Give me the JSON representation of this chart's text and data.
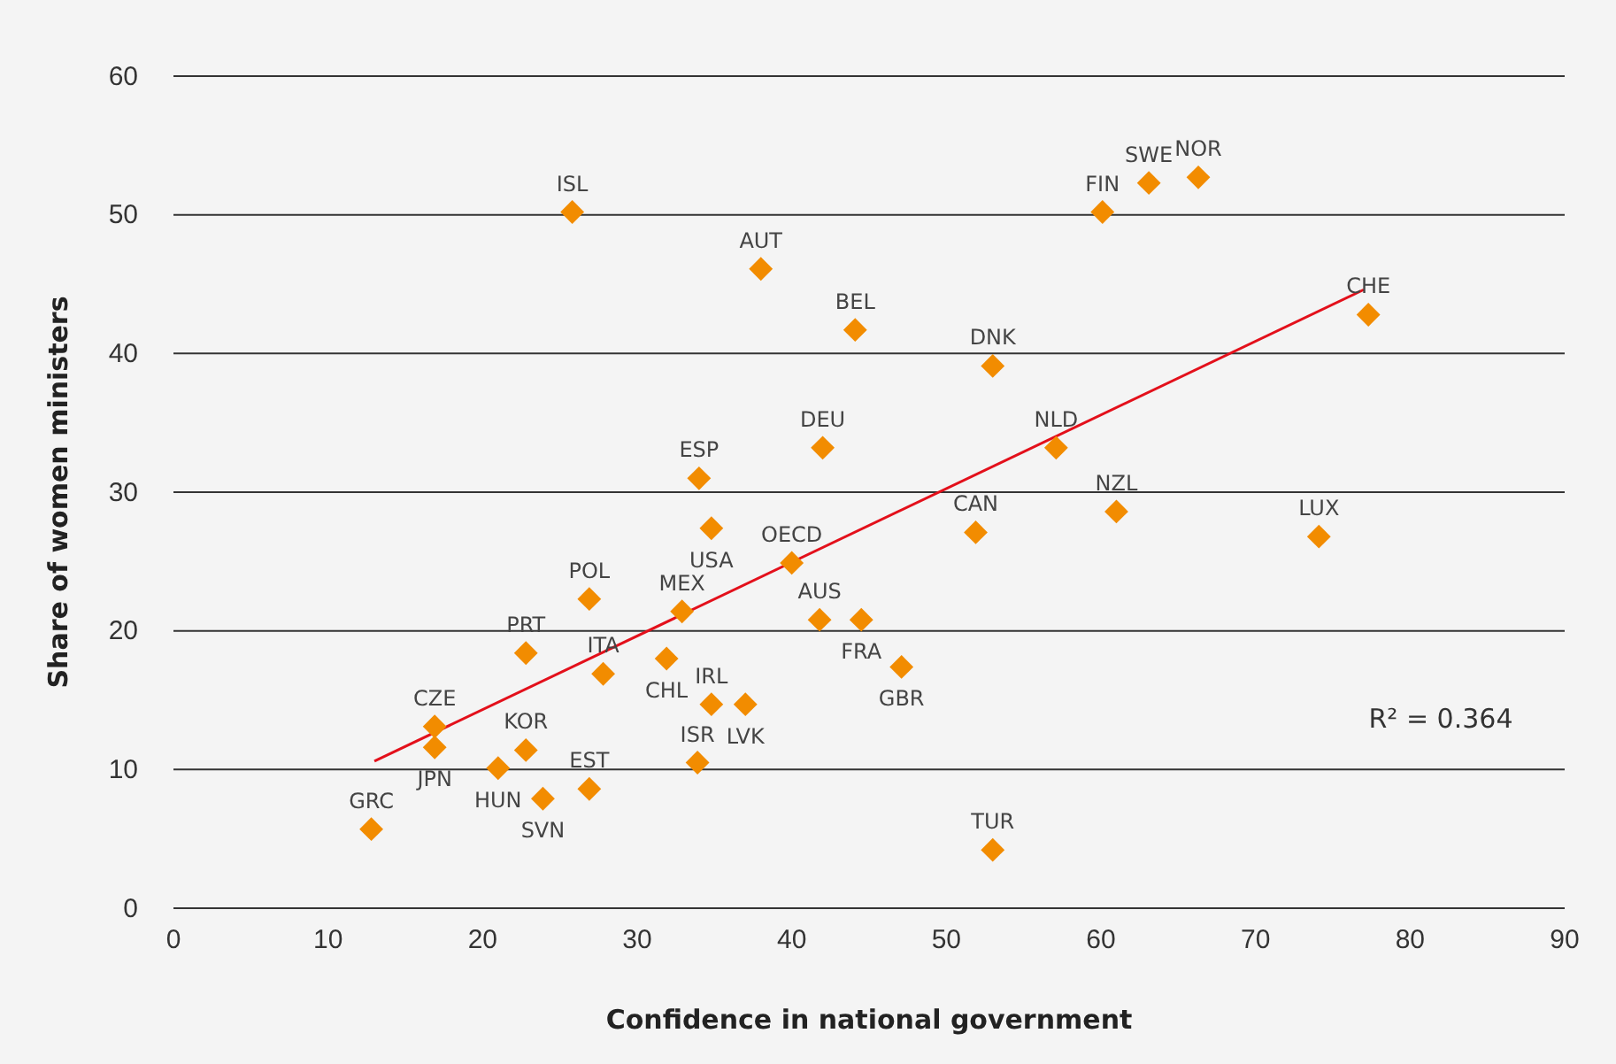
{
  "chart_data": {
    "type": "scatter",
    "xlabel": "Confidence in national government",
    "ylabel": "Share of women ministers",
    "xlim": [
      0,
      90
    ],
    "xticks": [
      0,
      10,
      20,
      30,
      40,
      50,
      60,
      70,
      80,
      90
    ],
    "ylim": [
      0,
      60
    ],
    "yticks": [
      0,
      10,
      20,
      30,
      40,
      50,
      60
    ],
    "grid": "y",
    "marker": "diamond",
    "series": [
      {
        "color": "#f28c00",
        "x": [
          12.8,
          16.9,
          16.9,
          21.0,
          22.8,
          23.9,
          26.9,
          22.8,
          27.8,
          26.9,
          31.9,
          32.9,
          25.8,
          34.0,
          34.8,
          34.8,
          37.0,
          33.9,
          38.0,
          40.0,
          42.0,
          41.8,
          44.5,
          44.1,
          47.1,
          51.9,
          53.0,
          53.0,
          57.1,
          61.0,
          60.1,
          63.1,
          66.3,
          77.3,
          74.1
        ],
        "values": [
          5.7,
          13.1,
          11.6,
          10.1,
          11.4,
          7.9,
          8.6,
          18.4,
          16.9,
          22.3,
          18.0,
          21.4,
          50.2,
          31.0,
          27.4,
          14.7,
          14.7,
          10.5,
          46.1,
          24.9,
          33.2,
          20.8,
          20.8,
          41.7,
          17.4,
          27.1,
          39.1,
          4.2,
          33.2,
          28.6,
          50.2,
          52.3,
          52.7,
          42.8,
          26.8
        ]
      },
      {
        "type": "line",
        "color": "#e3101b",
        "marker": "none",
        "line_style": "solid",
        "x": [
          13,
          77
        ],
        "values": [
          10.6,
          44.6
        ]
      }
    ],
    "annotations": [
      {
        "text": "GRC",
        "x": 12.8,
        "y": 5.7
      },
      {
        "text": "CZE",
        "x": 16.9,
        "y": 13.1
      },
      {
        "text": "JPN",
        "x": 16.9,
        "y": 11.6
      },
      {
        "text": "HUN",
        "x": 21.0,
        "y": 10.1
      },
      {
        "text": "KOR",
        "x": 22.8,
        "y": 11.4
      },
      {
        "text": "SVN",
        "x": 23.9,
        "y": 7.9
      },
      {
        "text": "EST",
        "x": 26.9,
        "y": 8.6
      },
      {
        "text": "PRT",
        "x": 22.8,
        "y": 18.4
      },
      {
        "text": "ITA",
        "x": 27.8,
        "y": 16.9
      },
      {
        "text": "POL",
        "x": 26.9,
        "y": 22.3
      },
      {
        "text": "CHL",
        "x": 31.9,
        "y": 18.0
      },
      {
        "text": "MEX",
        "x": 32.9,
        "y": 21.4
      },
      {
        "text": "ISL",
        "x": 25.8,
        "y": 50.2
      },
      {
        "text": "ESP",
        "x": 34.0,
        "y": 31.0
      },
      {
        "text": "USA",
        "x": 34.8,
        "y": 27.4
      },
      {
        "text": "IRL",
        "x": 34.8,
        "y": 14.7
      },
      {
        "text": "LVK",
        "x": 37.0,
        "y": 14.7
      },
      {
        "text": "ISR",
        "x": 33.9,
        "y": 10.5
      },
      {
        "text": "AUT",
        "x": 38.0,
        "y": 46.1
      },
      {
        "text": "OECD",
        "x": 40.0,
        "y": 24.9
      },
      {
        "text": "DEU",
        "x": 42.0,
        "y": 33.2
      },
      {
        "text": "AUS",
        "x": 41.8,
        "y": 20.8
      },
      {
        "text": "FRA",
        "x": 44.5,
        "y": 20.8
      },
      {
        "text": "BEL",
        "x": 44.1,
        "y": 41.7
      },
      {
        "text": "GBR",
        "x": 47.1,
        "y": 17.4
      },
      {
        "text": "CAN",
        "x": 51.9,
        "y": 27.1
      },
      {
        "text": "DNK",
        "x": 53.0,
        "y": 39.1
      },
      {
        "text": "TUR",
        "x": 53.0,
        "y": 4.2
      },
      {
        "text": "NLD",
        "x": 57.1,
        "y": 33.2
      },
      {
        "text": "NZL",
        "x": 61.0,
        "y": 28.6
      },
      {
        "text": "FIN",
        "x": 60.1,
        "y": 50.2
      },
      {
        "text": "SWE",
        "x": 63.1,
        "y": 52.3
      },
      {
        "text": "NOR",
        "x": 66.3,
        "y": 52.7
      },
      {
        "text": "CHE",
        "x": 77.3,
        "y": 42.8
      },
      {
        "text": "LUX",
        "x": 74.1,
        "y": 26.8
      },
      "R² = 0.364"
    ]
  }
}
